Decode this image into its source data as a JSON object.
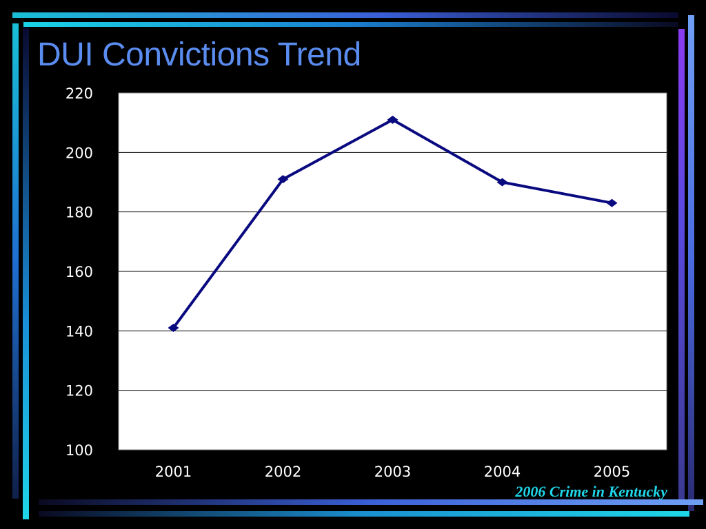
{
  "slide": {
    "title": "DUI Convictions Trend",
    "source": "2006 Crime in Kentucky"
  },
  "colors": {
    "background": "#000000",
    "title": "#5b8cf0",
    "source": "#1fd6e8",
    "line": "#0a0a80",
    "plot_bg": "#ffffff"
  },
  "chart_data": {
    "type": "line",
    "title": "",
    "xlabel": "",
    "ylabel": "",
    "categories": [
      "2001",
      "2002",
      "2003",
      "2004",
      "2005"
    ],
    "series": [
      {
        "values": [
          141,
          191,
          211,
          190,
          183
        ]
      }
    ],
    "ylim": [
      100,
      220
    ],
    "yticks": [
      100,
      120,
      140,
      160,
      180,
      200,
      220
    ],
    "grid": true,
    "legend": "none",
    "marker": "diamond"
  }
}
